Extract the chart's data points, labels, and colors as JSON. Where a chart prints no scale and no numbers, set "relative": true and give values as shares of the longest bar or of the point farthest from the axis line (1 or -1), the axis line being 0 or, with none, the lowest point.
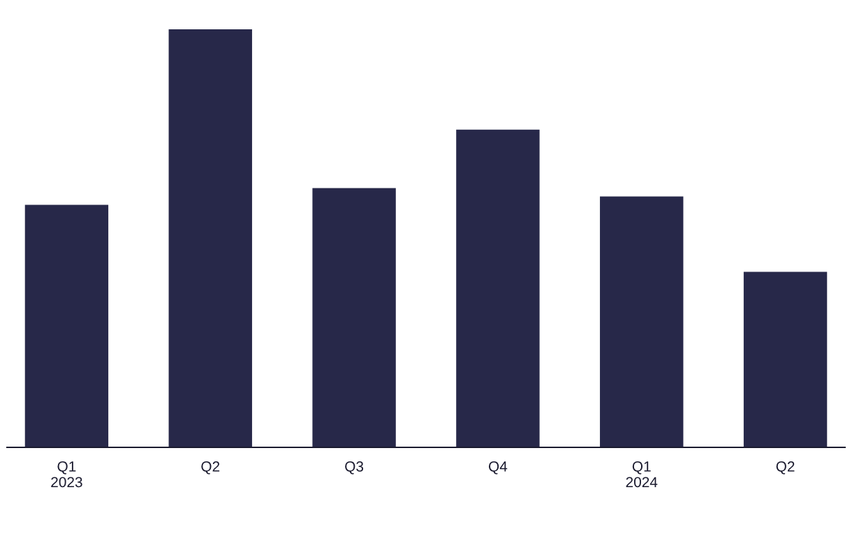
{
  "chart_data": {
    "type": "bar",
    "relative": true,
    "categories": [
      "Q1\n2023",
      "Q2",
      "Q3",
      "Q4",
      "Q1\n2024",
      "Q2"
    ],
    "values": [
      0.58,
      1,
      0.62,
      0.76,
      0.6,
      0.42
    ],
    "color": "#272849",
    "grid": false,
    "legend": false
  }
}
